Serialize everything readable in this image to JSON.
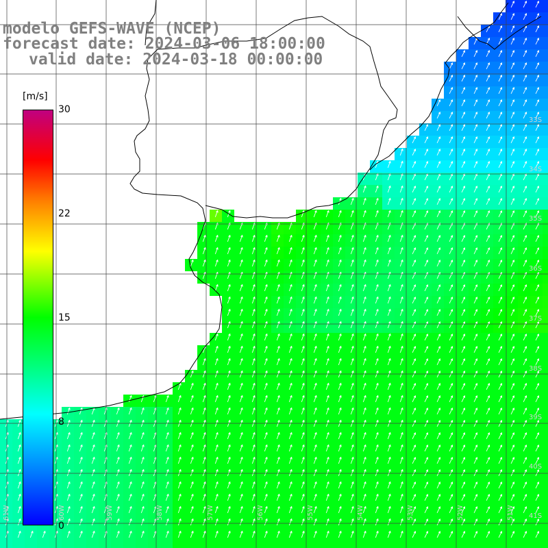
{
  "title": {
    "line1": "modelo GEFS-WAVE (NCEP)",
    "line2": "forecast date: 2024-03-06 18:00:00",
    "line3": "valid date: 2024-03-18 00:00:00"
  },
  "colorbar": {
    "units": "[m/s]",
    "ticks": [
      {
        "label": "30",
        "value": 30
      },
      {
        "label": "22",
        "value": 22
      },
      {
        "label": "15",
        "value": 15
      },
      {
        "label": "8",
        "value": 8
      },
      {
        "label": "0",
        "value": 0
      }
    ],
    "range": [
      0,
      30
    ]
  },
  "map": {
    "lat_labels": [
      "33S",
      "34S",
      "35S",
      "36S",
      "37S",
      "38S",
      "39S",
      "40S",
      "41S"
    ],
    "lon_labels": [
      "61W",
      "60W",
      "59W",
      "58W",
      "57W",
      "56W",
      "55W",
      "54W",
      "53W",
      "52W",
      "51W"
    ],
    "colors": {
      "land": "#ffffff",
      "grid": "#404040",
      "coast": "#000000",
      "arrows": "#ffffff"
    }
  }
}
